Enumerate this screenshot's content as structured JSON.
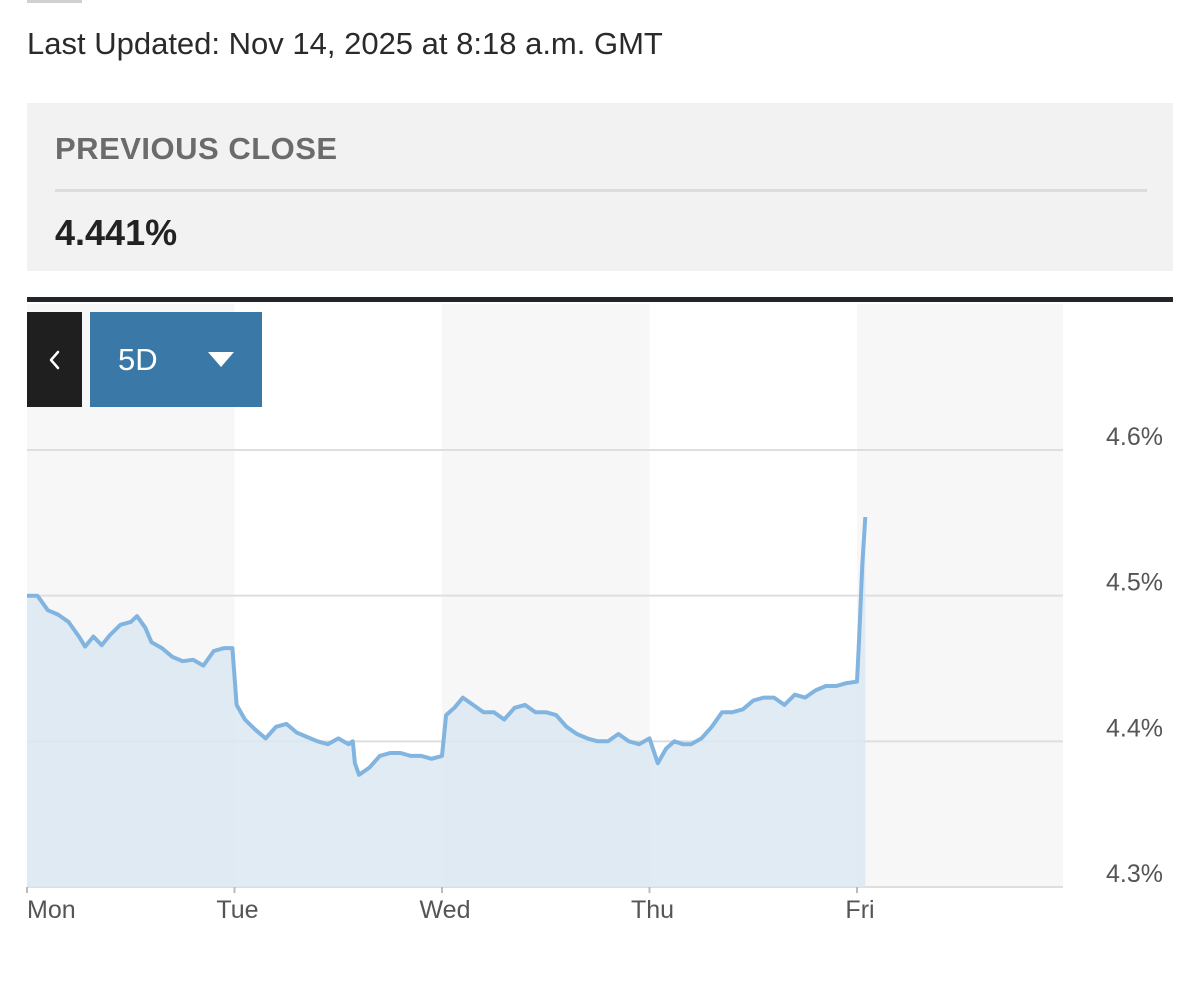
{
  "header": {
    "last_updated": "Last Updated: Nov 14, 2025 at 8:18 a.m. GMT"
  },
  "previous_close": {
    "label": "PREVIOUS CLOSE",
    "value": "4.441%"
  },
  "controls": {
    "back_icon": "chevron-left-icon",
    "range_label": "5D",
    "range_icon": "caret-down-icon"
  },
  "colors": {
    "line": "#82b4e0",
    "area": "#dce8f2",
    "range_button": "#3a78a8",
    "back_button": "#1f1f1f"
  },
  "chart_data": {
    "type": "area",
    "x_categories": [
      "Mon",
      "Tue",
      "Wed",
      "Thu",
      "Fri"
    ],
    "y_ticks": [
      {
        "value": 4.6,
        "label": "4.6%"
      },
      {
        "value": 4.5,
        "label": "4.5%"
      },
      {
        "value": 4.4,
        "label": "4.4%"
      },
      {
        "value": 4.3,
        "label": "4.3%"
      }
    ],
    "ylim": [
      4.3,
      4.6
    ],
    "grid": true,
    "series": [
      {
        "points": [
          [
            0.0,
            4.5
          ],
          [
            0.05,
            4.5
          ],
          [
            0.1,
            4.49
          ],
          [
            0.15,
            4.487
          ],
          [
            0.2,
            4.482
          ],
          [
            0.25,
            4.472
          ],
          [
            0.28,
            4.465
          ],
          [
            0.32,
            4.472
          ],
          [
            0.36,
            4.466
          ],
          [
            0.4,
            4.473
          ],
          [
            0.45,
            4.48
          ],
          [
            0.5,
            4.482
          ],
          [
            0.53,
            4.486
          ],
          [
            0.57,
            4.478
          ],
          [
            0.6,
            4.468
          ],
          [
            0.65,
            4.464
          ],
          [
            0.7,
            4.458
          ],
          [
            0.75,
            4.455
          ],
          [
            0.8,
            4.456
          ],
          [
            0.85,
            4.452
          ],
          [
            0.9,
            4.462
          ],
          [
            0.95,
            4.464
          ],
          [
            0.99,
            4.464
          ],
          [
            1.01,
            4.425
          ],
          [
            1.05,
            4.415
          ],
          [
            1.1,
            4.408
          ],
          [
            1.15,
            4.402
          ],
          [
            1.2,
            4.41
          ],
          [
            1.25,
            4.412
          ],
          [
            1.3,
            4.406
          ],
          [
            1.35,
            4.403
          ],
          [
            1.4,
            4.4
          ],
          [
            1.45,
            4.398
          ],
          [
            1.5,
            4.402
          ],
          [
            1.55,
            4.398
          ],
          [
            1.57,
            4.4
          ],
          [
            1.58,
            4.385
          ],
          [
            1.6,
            4.377
          ],
          [
            1.65,
            4.382
          ],
          [
            1.7,
            4.39
          ],
          [
            1.75,
            4.392
          ],
          [
            1.8,
            4.392
          ],
          [
            1.85,
            4.39
          ],
          [
            1.9,
            4.39
          ],
          [
            1.95,
            4.388
          ],
          [
            2.0,
            4.39
          ],
          [
            2.02,
            4.418
          ],
          [
            2.06,
            4.423
          ],
          [
            2.1,
            4.43
          ],
          [
            2.15,
            4.425
          ],
          [
            2.2,
            4.42
          ],
          [
            2.25,
            4.42
          ],
          [
            2.3,
            4.415
          ],
          [
            2.35,
            4.423
          ],
          [
            2.4,
            4.425
          ],
          [
            2.45,
            4.42
          ],
          [
            2.5,
            4.42
          ],
          [
            2.55,
            4.418
          ],
          [
            2.6,
            4.41
          ],
          [
            2.65,
            4.405
          ],
          [
            2.7,
            4.402
          ],
          [
            2.75,
            4.4
          ],
          [
            2.8,
            4.4
          ],
          [
            2.85,
            4.405
          ],
          [
            2.9,
            4.4
          ],
          [
            2.95,
            4.398
          ],
          [
            3.0,
            4.402
          ],
          [
            3.04,
            4.385
          ],
          [
            3.08,
            4.395
          ],
          [
            3.12,
            4.4
          ],
          [
            3.16,
            4.398
          ],
          [
            3.2,
            4.398
          ],
          [
            3.25,
            4.402
          ],
          [
            3.3,
            4.41
          ],
          [
            3.35,
            4.42
          ],
          [
            3.4,
            4.42
          ],
          [
            3.45,
            4.422
          ],
          [
            3.5,
            4.428
          ],
          [
            3.55,
            4.43
          ],
          [
            3.6,
            4.43
          ],
          [
            3.65,
            4.425
          ],
          [
            3.7,
            4.432
          ],
          [
            3.75,
            4.43
          ],
          [
            3.8,
            4.435
          ],
          [
            3.85,
            4.438
          ],
          [
            3.9,
            4.438
          ],
          [
            3.95,
            4.44
          ],
          [
            4.0,
            4.441
          ],
          [
            4.01,
            4.47
          ],
          [
            4.025,
            4.52
          ],
          [
            4.04,
            4.554
          ]
        ]
      }
    ]
  }
}
